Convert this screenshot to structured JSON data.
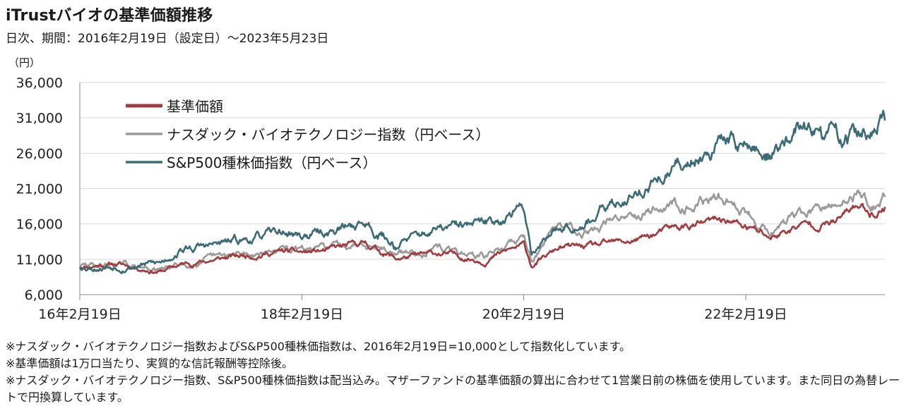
{
  "header": {
    "title": "iTrustバイオの基準価額推移",
    "subtitle": "日次、期間：2016年2月19日（設定日）～2023年5月23日",
    "unit": "（円）"
  },
  "notes": [
    "※ナスダック・バイオテクノロジー指数およびS&P500種株価指数は、2016年2月19日=10,000として指数化しています。",
    "※基準価額は1万口当たり、実質的な信託報酬等控除後。",
    "※ナスダック・バイオテクノロジー指数、S&P500種株価指数は配当込み。マザーファンドの基準価額の算出に合わせて1営業日前の株価を使用しています。また同日の為替レートで円換算しています。"
  ],
  "colors": {
    "nav": "#a23b3e",
    "nbi": "#9a9a9a",
    "sp500": "#3b6b76",
    "grid": "#d9d9d9",
    "axis": "#888888"
  },
  "chart_data": {
    "type": "line",
    "title": "iTrustバイオの基準価額推移",
    "ylabel": "（円）",
    "ylim": [
      6000,
      36000
    ],
    "yticks": [
      6000,
      11000,
      16000,
      21000,
      26000,
      31000,
      36000
    ],
    "ytick_labels": [
      "6,000",
      "11,000",
      "16,000",
      "21,000",
      "26,000",
      "31,000",
      "36,000"
    ],
    "xlim": [
      "2016-02-19",
      "2023-05-23"
    ],
    "xticks": [
      "2016-02-19",
      "2018-02-19",
      "2020-02-19",
      "2022-02-19"
    ],
    "xtick_labels": [
      "16年2月19日",
      "18年2月19日",
      "20年2月19日",
      "22年2月19日"
    ],
    "grid": "horizontal",
    "legend_position": "top-left",
    "series": [
      {
        "name": "基準価額",
        "color": "#a23b3e",
        "points": [
          [
            "2016-02-19",
            10000
          ],
          [
            "2016-06-15",
            10400
          ],
          [
            "2016-11-10",
            9300
          ],
          [
            "2017-01-15",
            10200
          ],
          [
            "2017-06-15",
            11200
          ],
          [
            "2017-12-15",
            12100
          ],
          [
            "2018-02-19",
            11900
          ],
          [
            "2018-05-15",
            12200
          ],
          [
            "2018-09-15",
            13300
          ],
          [
            "2018-12-25",
            11100
          ],
          [
            "2019-05-15",
            11800
          ],
          [
            "2019-10-15",
            10900
          ],
          [
            "2020-01-15",
            12500
          ],
          [
            "2020-02-20",
            12900
          ],
          [
            "2020-03-16",
            10100
          ],
          [
            "2020-06-15",
            12600
          ],
          [
            "2020-10-15",
            12800
          ],
          [
            "2021-02-15",
            13600
          ],
          [
            "2021-06-15",
            15200
          ],
          [
            "2021-12-15",
            16600
          ],
          [
            "2022-05-15",
            14100
          ],
          [
            "2022-08-15",
            15800
          ],
          [
            "2022-12-15",
            16300
          ],
          [
            "2023-02-15",
            18600
          ],
          [
            "2023-04-15",
            17600
          ],
          [
            "2023-05-23",
            18400
          ]
        ]
      },
      {
        "name": "ナスダック・バイオテクノロジー指数（円ベース）",
        "color": "#9a9a9a",
        "points": [
          [
            "2016-02-19",
            10000
          ],
          [
            "2016-06-15",
            10300
          ],
          [
            "2016-11-10",
            9400
          ],
          [
            "2017-01-15",
            10300
          ],
          [
            "2017-06-15",
            11300
          ],
          [
            "2017-12-15",
            12400
          ],
          [
            "2018-02-19",
            12200
          ],
          [
            "2018-05-15",
            12600
          ],
          [
            "2018-09-15",
            13900
          ],
          [
            "2018-12-25",
            11700
          ],
          [
            "2019-05-15",
            12400
          ],
          [
            "2019-10-15",
            11400
          ],
          [
            "2020-01-15",
            13400
          ],
          [
            "2020-02-20",
            14200
          ],
          [
            "2020-03-16",
            11200
          ],
          [
            "2020-06-15",
            15500
          ],
          [
            "2020-10-15",
            15200
          ],
          [
            "2021-02-15",
            17900
          ],
          [
            "2021-06-15",
            18800
          ],
          [
            "2021-12-15",
            19600
          ],
          [
            "2022-05-15",
            15200
          ],
          [
            "2022-08-15",
            17300
          ],
          [
            "2022-12-15",
            18300
          ],
          [
            "2023-02-15",
            20500
          ],
          [
            "2023-04-15",
            18800
          ],
          [
            "2023-05-23",
            19800
          ]
        ]
      },
      {
        "name": "S&P500種株価指数（円ベース）",
        "color": "#3b6b76",
        "points": [
          [
            "2016-02-19",
            10000
          ],
          [
            "2016-06-15",
            10100
          ],
          [
            "2016-11-10",
            10400
          ],
          [
            "2017-01-15",
            12400
          ],
          [
            "2017-06-15",
            13200
          ],
          [
            "2017-12-15",
            14800
          ],
          [
            "2018-02-19",
            14300
          ],
          [
            "2018-05-15",
            14900
          ],
          [
            "2018-09-15",
            16200
          ],
          [
            "2018-12-25",
            13100
          ],
          [
            "2019-05-15",
            15200
          ],
          [
            "2019-10-15",
            15800
          ],
          [
            "2020-01-15",
            17600
          ],
          [
            "2020-02-20",
            18300
          ],
          [
            "2020-03-16",
            12200
          ],
          [
            "2020-06-15",
            15800
          ],
          [
            "2020-10-15",
            17200
          ],
          [
            "2021-02-15",
            20400
          ],
          [
            "2021-06-15",
            23300
          ],
          [
            "2021-12-15",
            28100
          ],
          [
            "2022-05-15",
            25600
          ],
          [
            "2022-08-15",
            29500
          ],
          [
            "2022-12-15",
            28200
          ],
          [
            "2023-02-15",
            28600
          ],
          [
            "2023-04-15",
            28800
          ],
          [
            "2023-05-23",
            30600
          ]
        ]
      }
    ]
  }
}
